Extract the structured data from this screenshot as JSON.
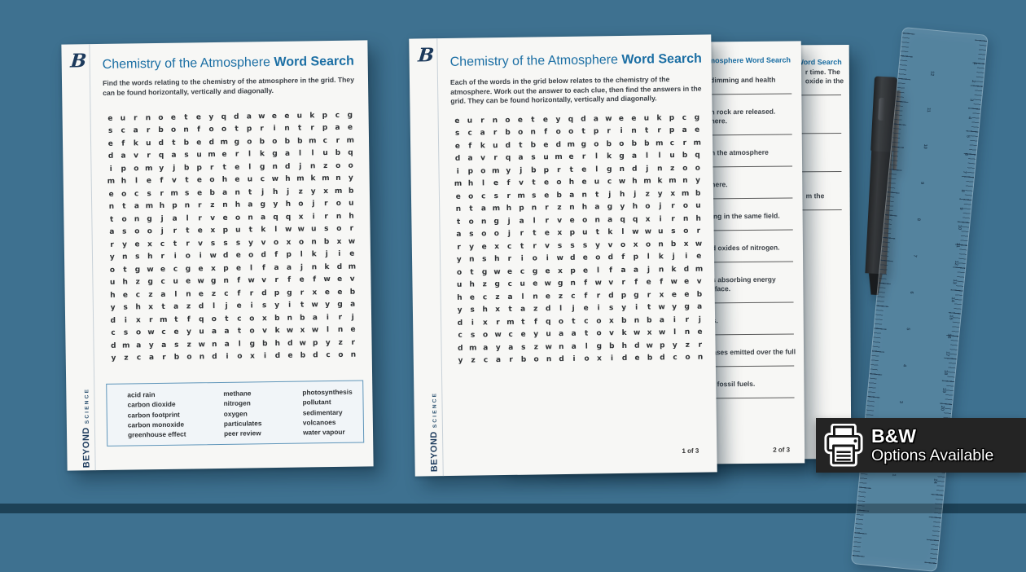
{
  "colors": {
    "background": "#3E7190",
    "accent_blue": "#1C6FA4",
    "navy": "#1C3A5C",
    "paper": "#F7F7F5",
    "badge_bg": "#242424"
  },
  "brand": {
    "logo_letter": "B",
    "name": "BEYOND",
    "sub": "SCIENCE"
  },
  "title": {
    "regular": "Chemistry of the Atmosphere ",
    "bold": "Word Search"
  },
  "word_search_grid": [
    "eurnoeteyqdaweeukpcg",
    "scarbonfootprintrpae",
    "efkudtbedmgobobbmcrm",
    "davrqasumerlkgallubq",
    "ipomyjbprtelgndjnzoo",
    "mhlefvteoheucwhmkmny",
    "eocsrmsebantjhjzyxmb",
    "ntamhpnrznhagyhojrou",
    "tongjalrveonaqqxirnh",
    "asoojrtexputklwwusor",
    "ryexctrvsssyvoxonbxw",
    "ynshrioiwdeodfplkjie",
    "otgwecgexpelfaajnkdm",
    "uhzgcuewgnfwvrfefwev",
    "heczalnezcfrdpgrxeeb",
    "yshxtazdljeisyitwyga",
    "dixrmtfqotcoxbnbairj",
    "csowceyuaatovkwxwlne",
    "dmayaszwnalgbhdwpyzr",
    "yzcarbondioxidebdcon"
  ],
  "page1": {
    "instructions": "Find the words relating to the chemistry of the atmosphere in the grid. They can be found horizontally, vertically and diagonally.",
    "word_bank": {
      "col1": [
        "acid rain",
        "carbon dioxide",
        "carbon footprint",
        "carbon monoxide",
        "greenhouse effect"
      ],
      "col2": [
        "methane",
        "nitrogen",
        "oxygen",
        "particulates",
        "peer review"
      ],
      "col3": [
        "photosynthesis",
        "pollutant",
        "sedimentary",
        "volcanoes",
        "water vapour"
      ]
    }
  },
  "page2": {
    "instructions": "Each of the words in the grid below relates to the chemistry of the atmosphere. Work out the answer to each clue, then find the answers in the grid. They can be found horizontally, vertically and diagonally.",
    "page_number": "1 of 3"
  },
  "page3": {
    "title_fragment": "he Atmosphere Word Search",
    "page_number": "2 of 3",
    "clues": [
      {
        "lines": [
          "dimming and health"
        ]
      },
      {
        "lines": [
          "n rock are released.",
          "here."
        ]
      },
      {
        "lines": [
          "n the atmosphere"
        ]
      },
      {
        "lines": [
          "here."
        ]
      },
      {
        "lines": [
          "ing in the same field."
        ]
      },
      {
        "lines": [
          "d oxides of nitrogen."
        ]
      },
      {
        "lines": [
          "s absorbing energy",
          "rface."
        ]
      },
      {
        "lines": [
          "s."
        ]
      },
      {
        "lines": [
          "ases emitted over the full"
        ]
      },
      {
        "lines": [
          "f fossil fuels."
        ]
      }
    ]
  },
  "page4": {
    "title_fragment": "s Word Search",
    "clues": [
      {
        "lines": [
          "r time. The",
          "oxide in the"
        ]
      },
      {
        "lines": [
          ""
        ]
      },
      {
        "lines": [
          ""
        ]
      },
      {
        "lines": [
          "m the"
        ]
      }
    ]
  },
  "ruler": {
    "inch_numbers": [
      "12",
      "11",
      "10",
      "9",
      "8",
      "7",
      "6",
      "5",
      "4",
      "3",
      "2",
      "1"
    ],
    "cm_numbers": [
      "1",
      "2",
      "3",
      "4",
      "5",
      "6",
      "7",
      "8",
      "9",
      "10",
      "11",
      "12",
      "13",
      "14",
      "15",
      "16",
      "17",
      "18",
      "19",
      "20",
      "21",
      "22",
      "23",
      "24"
    ]
  },
  "badge": {
    "bw": "B&W",
    "options": "Options Available"
  }
}
